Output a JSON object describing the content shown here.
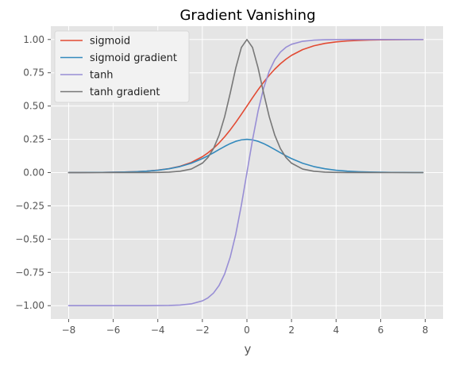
{
  "chart_data": {
    "type": "line",
    "title": "Gradient Vanishing",
    "xlabel": "y",
    "ylabel": "",
    "xlim": [
      -8.8,
      8.8
    ],
    "ylim": [
      -1.1,
      1.1
    ],
    "xticks": [
      -8,
      -6,
      -4,
      -2,
      0,
      2,
      4,
      6,
      8
    ],
    "xtick_labels": [
      "−8",
      "−6",
      "−4",
      "−2",
      "0",
      "2",
      "4",
      "6",
      "8"
    ],
    "yticks": [
      -1.0,
      -0.75,
      -0.5,
      -0.25,
      0.0,
      0.25,
      0.5,
      0.75,
      1.0
    ],
    "ytick_labels": [
      "−1.00",
      "−0.75",
      "−0.50",
      "−0.25",
      "0.00",
      "0.25",
      "0.50",
      "0.75",
      "1.00"
    ],
    "grid": true,
    "legend_position": "top-left",
    "x": [
      -8,
      -7.5,
      -7,
      -6.5,
      -6,
      -5.5,
      -5,
      -4.5,
      -4,
      -3.5,
      -3,
      -2.5,
      -2,
      -1.75,
      -1.5,
      -1.25,
      -1,
      -0.75,
      -0.5,
      -0.25,
      0,
      0.25,
      0.5,
      0.75,
      1,
      1.25,
      1.5,
      1.75,
      2,
      2.5,
      3,
      3.5,
      4,
      4.5,
      5,
      5.5,
      6,
      6.5,
      7,
      7.5,
      7.9
    ],
    "series": [
      {
        "name": "sigmoid",
        "color": "#E24A33",
        "values": [
          0.0003,
          0.0006,
          0.0009,
          0.0015,
          0.0025,
          0.0041,
          0.0067,
          0.011,
          0.018,
          0.0293,
          0.0474,
          0.0759,
          0.1192,
          0.148,
          0.1824,
          0.2227,
          0.2689,
          0.3208,
          0.3775,
          0.4378,
          0.5,
          0.5622,
          0.6225,
          0.6792,
          0.7311,
          0.7773,
          0.8176,
          0.852,
          0.8808,
          0.9241,
          0.9526,
          0.9707,
          0.982,
          0.989,
          0.9933,
          0.9959,
          0.9975,
          0.9985,
          0.9991,
          0.9994,
          0.9996
        ]
      },
      {
        "name": "sigmoid gradient",
        "color": "#348ABD",
        "values": [
          0.0003,
          0.0006,
          0.0009,
          0.0015,
          0.0025,
          0.0041,
          0.0066,
          0.0109,
          0.0177,
          0.0285,
          0.0452,
          0.0701,
          0.105,
          0.1261,
          0.1491,
          0.1731,
          0.1966,
          0.2179,
          0.235,
          0.246,
          0.25,
          0.246,
          0.235,
          0.2179,
          0.1966,
          0.1731,
          0.1491,
          0.1261,
          0.105,
          0.0701,
          0.0452,
          0.0285,
          0.0177,
          0.0109,
          0.0066,
          0.0041,
          0.0025,
          0.0015,
          0.0009,
          0.0006,
          0.0004
        ]
      },
      {
        "name": "tanh",
        "color": "#988ED5",
        "values": [
          -1.0,
          -1.0,
          -1.0,
          -1.0,
          -1.0,
          -1.0,
          -0.9999,
          -0.9998,
          -0.9993,
          -0.9982,
          -0.9951,
          -0.9866,
          -0.964,
          -0.9414,
          -0.9051,
          -0.8483,
          -0.7616,
          -0.6351,
          -0.4621,
          -0.2449,
          0.0,
          0.2449,
          0.4621,
          0.6351,
          0.7616,
          0.8483,
          0.9051,
          0.9414,
          0.964,
          0.9866,
          0.9951,
          0.9982,
          0.9993,
          0.9998,
          0.9999,
          1.0,
          1.0,
          1.0,
          1.0,
          1.0,
          1.0
        ]
      },
      {
        "name": "tanh gradient",
        "color": "#777777",
        "values": [
          0.0,
          0.0,
          0.0,
          0.0,
          0.0,
          0.0001,
          0.0002,
          0.0005,
          0.0013,
          0.0036,
          0.0099,
          0.0266,
          0.0707,
          0.1138,
          0.1807,
          0.2804,
          0.42,
          0.5966,
          0.7864,
          0.94,
          1.0,
          0.94,
          0.7864,
          0.5966,
          0.42,
          0.2804,
          0.1807,
          0.1138,
          0.0707,
          0.0266,
          0.0099,
          0.0036,
          0.0013,
          0.0005,
          0.0002,
          0.0001,
          0.0,
          0.0,
          0.0,
          0.0,
          0.0
        ]
      }
    ]
  },
  "colors": {
    "plot_background": "#E5E5E5",
    "grid": "#FFFFFF",
    "legend_background": "#F2F2F2",
    "legend_border": "#D8D8D8"
  }
}
